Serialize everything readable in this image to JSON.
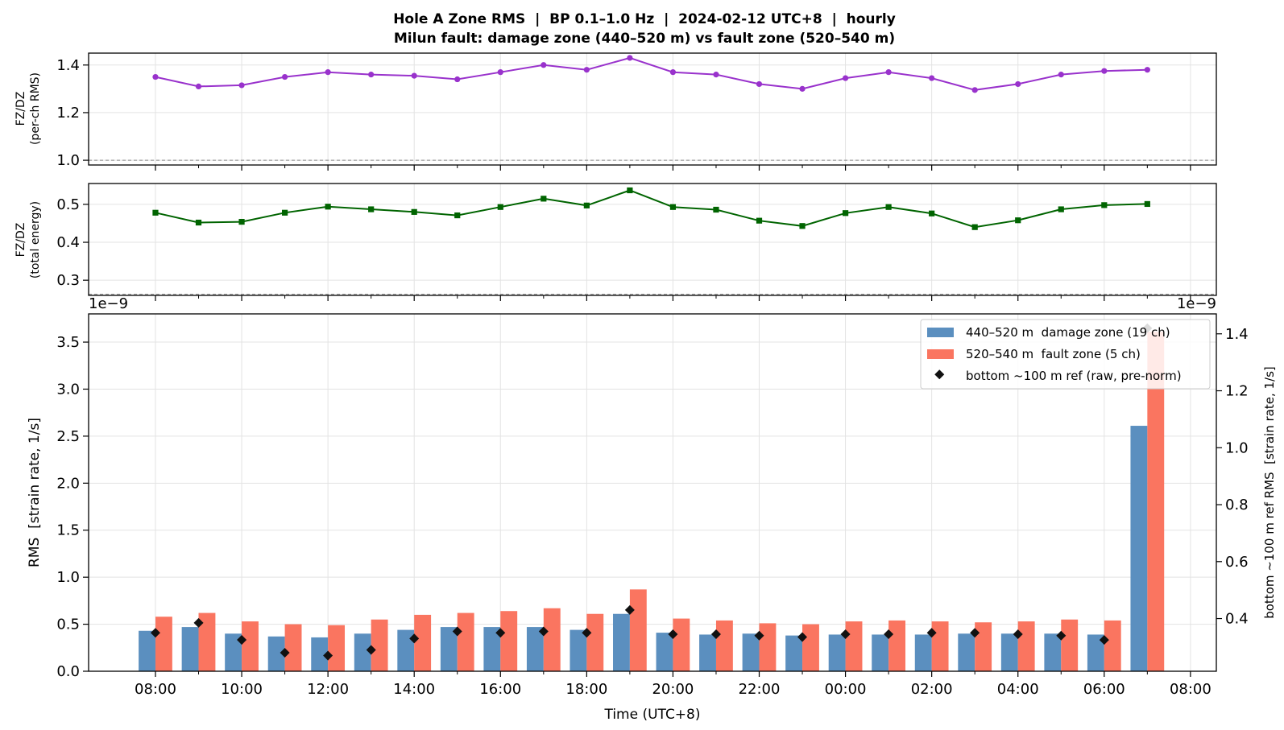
{
  "figure": {
    "title_line1": "Hole A Zone RMS  |  BP 0.1–1.0 Hz  |  2024-02-12 UTC+8  |  hourly",
    "title_line2": "Milun fault: damage zone (440–520 m) vs fault zone (520–540 m)",
    "xlabel": "Time (UTC+8)",
    "x_tick_labels": [
      "08:00",
      "10:00",
      "12:00",
      "14:00",
      "16:00",
      "18:00",
      "20:00",
      "22:00",
      "00:00",
      "02:00",
      "04:00",
      "06:00",
      "08:00"
    ]
  },
  "colors": {
    "ratio_rms": "#9932cc",
    "ratio_energy": "#006400",
    "damage_zone": "#5b8fbf",
    "fault_zone": "#fa7560",
    "bottom_ref": "#111111",
    "grid": "#e3e3e3",
    "ref_line": "#888888"
  },
  "chart_data": [
    {
      "type": "line",
      "ylabel_line1": "FZ/DZ",
      "ylabel_line2": "(per-ch RMS)",
      "ylim": [
        0.98,
        1.45
      ],
      "yticks": [
        1.0,
        1.2,
        1.4
      ],
      "ytick_labels": [
        "1.0",
        "1.2",
        "1.4"
      ],
      "reference_line": 1.0,
      "marker": "circle",
      "x_hours_from_start": [
        0,
        1,
        2,
        3,
        4,
        5,
        6,
        7,
        8,
        9,
        10,
        11,
        12,
        13,
        14,
        15,
        16,
        17,
        18,
        19,
        20,
        21,
        22,
        23
      ],
      "values": [
        1.35,
        1.31,
        1.315,
        1.35,
        1.37,
        1.36,
        1.355,
        1.34,
        1.37,
        1.4,
        1.38,
        1.43,
        1.37,
        1.36,
        1.32,
        1.3,
        1.345,
        1.37,
        1.345,
        1.295,
        1.32,
        1.36,
        1.375,
        1.38
      ]
    },
    {
      "type": "line",
      "ylabel_line1": "FZ/DZ",
      "ylabel_line2": "(total energy)",
      "ylim": [
        0.26,
        0.555
      ],
      "yticks": [
        0.3,
        0.4,
        0.5
      ],
      "ytick_labels": [
        "0.3",
        "0.4",
        "0.5"
      ],
      "reference_line": 0.263,
      "marker": "square",
      "x_hours_from_start": [
        0,
        1,
        2,
        3,
        4,
        5,
        6,
        7,
        8,
        9,
        10,
        11,
        12,
        13,
        14,
        15,
        16,
        17,
        18,
        19,
        20,
        21,
        22,
        23
      ],
      "values": [
        0.478,
        0.452,
        0.454,
        0.478,
        0.494,
        0.487,
        0.48,
        0.471,
        0.493,
        0.515,
        0.497,
        0.537,
        0.493,
        0.486,
        0.457,
        0.443,
        0.477,
        0.493,
        0.476,
        0.44,
        0.458,
        0.487,
        0.498,
        0.501
      ]
    },
    {
      "type": "bar",
      "ylabel": "RMS  [strain rate, 1/s]",
      "y_scale_label": "1e−9",
      "ylim": [
        0,
        3.8
      ],
      "yticks": [
        0.0,
        0.5,
        1.0,
        1.5,
        2.0,
        2.5,
        3.0,
        3.5
      ],
      "ytick_labels": [
        "0.0",
        "0.5",
        "1.0",
        "1.5",
        "2.0",
        "2.5",
        "3.0",
        "3.5"
      ],
      "y2label": "bottom ~100 m ref RMS  [strain rate, 1/s]",
      "y2_scale_label": "1e−9",
      "y2lim": [
        0.215,
        1.47
      ],
      "y2ticks": [
        0.4,
        0.6,
        0.8,
        1.0,
        1.2,
        1.4
      ],
      "y2tick_labels": [
        "0.4",
        "0.6",
        "0.8",
        "1.0",
        "1.2",
        "1.4"
      ],
      "legend_position": "top-right",
      "series": [
        {
          "name": "440–520 m  damage zone (19 ch)",
          "kind": "bar",
          "values": [
            0.43,
            0.47,
            0.4,
            0.37,
            0.36,
            0.4,
            0.44,
            0.47,
            0.47,
            0.47,
            0.44,
            0.61,
            0.41,
            0.39,
            0.4,
            0.38,
            0.39,
            0.39,
            0.39,
            0.4,
            0.4,
            0.4,
            0.39,
            2.61
          ]
        },
        {
          "name": "520–540 m  fault zone (5 ch)",
          "kind": "bar",
          "values": [
            0.58,
            0.62,
            0.53,
            0.5,
            0.49,
            0.55,
            0.6,
            0.62,
            0.64,
            0.67,
            0.61,
            0.87,
            0.56,
            0.54,
            0.51,
            0.5,
            0.53,
            0.54,
            0.53,
            0.52,
            0.53,
            0.55,
            0.54,
            3.61
          ]
        },
        {
          "name": "bottom ~100 m ref (raw, pre-norm)",
          "kind": "marker",
          "axis": "right",
          "values": [
            0.35,
            0.385,
            0.325,
            0.28,
            0.27,
            0.29,
            0.33,
            0.355,
            0.35,
            0.355,
            0.35,
            0.43,
            0.345,
            0.345,
            0.34,
            0.335,
            0.345,
            0.345,
            0.35,
            0.35,
            0.345,
            0.34,
            0.325,
            1.42
          ]
        }
      ]
    }
  ]
}
